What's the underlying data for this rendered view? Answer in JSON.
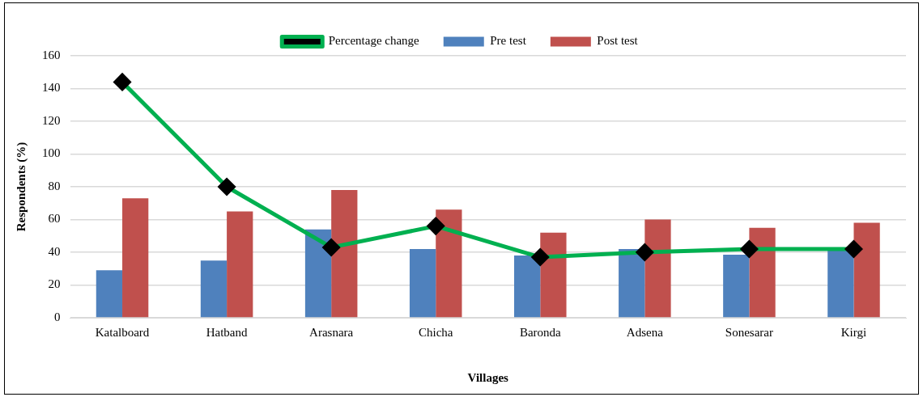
{
  "chart_data": {
    "type": "bar",
    "xlabel": "Villages",
    "ylabel": "Respondents (%)",
    "categories": [
      "Katalboard",
      "Hatband",
      "Arasnara",
      "Chicha",
      "Baronda",
      "Adsena",
      "Sonesarar",
      "Kirgi"
    ],
    "series": [
      {
        "name": "Pre test",
        "color": "#4f81bd",
        "values": [
          29,
          35,
          54,
          42,
          38,
          42,
          38.5,
          41
        ]
      },
      {
        "name": "Post test",
        "color": "#c0504d",
        "values": [
          73,
          65,
          78,
          66,
          52,
          60,
          55,
          58
        ]
      },
      {
        "name": "Percentage change",
        "type": "line",
        "color": "#00b050",
        "marker": "diamond",
        "values": [
          144,
          80,
          43,
          56,
          37,
          40,
          42,
          42
        ]
      }
    ],
    "ylim": [
      0,
      160
    ],
    "yticks": [
      0,
      20,
      40,
      60,
      80,
      100,
      120,
      140,
      160
    ],
    "grid": "y",
    "legend": "top"
  }
}
